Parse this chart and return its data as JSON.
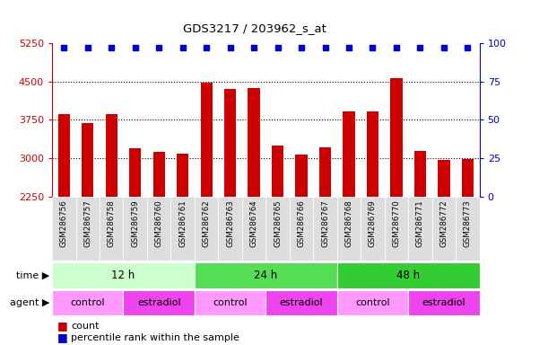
{
  "title": "GDS3217 / 203962_s_at",
  "samples": [
    "GSM286756",
    "GSM286757",
    "GSM286758",
    "GSM286759",
    "GSM286760",
    "GSM286761",
    "GSM286762",
    "GSM286763",
    "GSM286764",
    "GSM286765",
    "GSM286766",
    "GSM286767",
    "GSM286768",
    "GSM286769",
    "GSM286770",
    "GSM286771",
    "GSM286772",
    "GSM286773"
  ],
  "counts": [
    3870,
    3680,
    3870,
    3200,
    3130,
    3090,
    4470,
    4360,
    4370,
    3240,
    3080,
    3220,
    3920,
    3920,
    4570,
    3140,
    2960,
    2980
  ],
  "percentile_ranks": [
    97,
    97,
    97,
    97,
    97,
    97,
    97,
    97,
    97,
    97,
    97,
    97,
    97,
    97,
    97,
    97,
    97,
    97
  ],
  "ylim_left": [
    2250,
    5250
  ],
  "ylim_right": [
    0,
    100
  ],
  "yticks_left": [
    2250,
    3000,
    3750,
    4500,
    5250
  ],
  "yticks_right": [
    0,
    25,
    50,
    75,
    100
  ],
  "bar_color": "#cc0000",
  "dot_color": "#0000cc",
  "time_groups": [
    {
      "label": "12 h",
      "start": 0,
      "end": 6,
      "color": "#ccffcc"
    },
    {
      "label": "24 h",
      "start": 6,
      "end": 12,
      "color": "#55dd55"
    },
    {
      "label": "48 h",
      "start": 12,
      "end": 18,
      "color": "#33cc33"
    }
  ],
  "agent_groups": [
    {
      "label": "control",
      "start": 0,
      "end": 3,
      "color": "#ff99ff"
    },
    {
      "label": "estradiol",
      "start": 3,
      "end": 6,
      "color": "#ee44ee"
    },
    {
      "label": "control",
      "start": 6,
      "end": 9,
      "color": "#ff99ff"
    },
    {
      "label": "estradiol",
      "start": 9,
      "end": 12,
      "color": "#ee44ee"
    },
    {
      "label": "control",
      "start": 12,
      "end": 15,
      "color": "#ff99ff"
    },
    {
      "label": "estradiol",
      "start": 15,
      "end": 18,
      "color": "#ee44ee"
    }
  ],
  "left_axis_color": "#cc0000",
  "right_axis_color": "#0000cc",
  "background_color": "#ffffff",
  "gridline_color": "#000000",
  "grid_values": [
    3000,
    3750,
    4500
  ],
  "bar_width": 0.5,
  "xticklabel_bg": "#dddddd",
  "time_label": "time",
  "agent_label": "agent",
  "legend_count_label": "count",
  "legend_pct_label": "percentile rank within the sample"
}
